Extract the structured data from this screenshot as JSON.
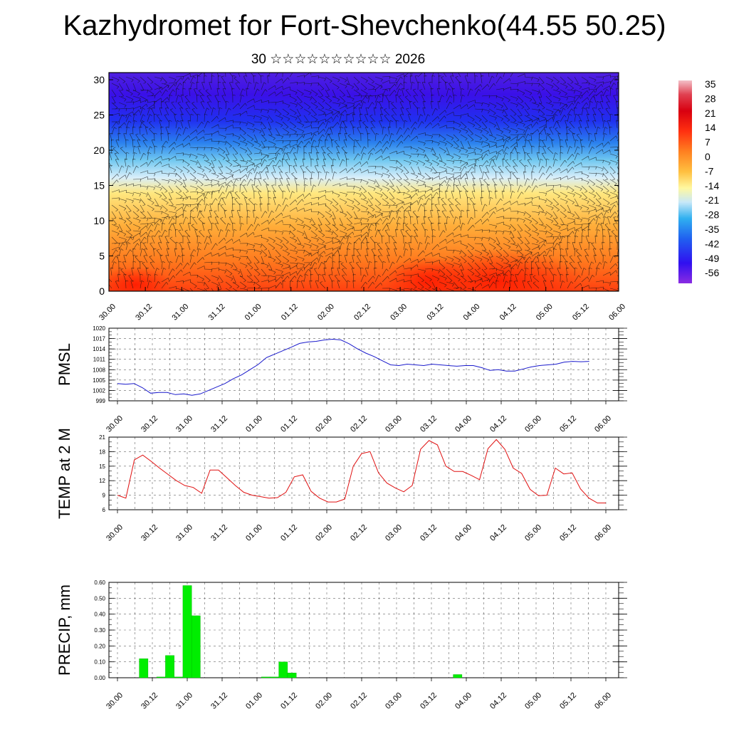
{
  "header": {
    "title": "Kazhydromet for Fort-Shevchenko(44.55 50.25)",
    "subtitle": "30 ☆☆☆☆☆☆☆☆☆☆ 2026"
  },
  "colors": {
    "pmsl_line": "#1a1acc",
    "temp_line": "#e01010",
    "precip_bar": "#00ee00"
  },
  "chart_data": [
    {
      "type": "heatmap",
      "title": "",
      "ylabel": "",
      "xlabel": "",
      "ylim": [
        0,
        30
      ],
      "yticks": [
        "0",
        "5",
        "10",
        "15",
        "20",
        "25",
        "30"
      ],
      "x_labels": [
        "30.00",
        "30.12",
        "31.00",
        "31.12",
        "01.00",
        "01.12",
        "02.00",
        "02.12",
        "03.00",
        "03.12",
        "04.00",
        "04.12",
        "05.00",
        "05.12",
        "06.00"
      ],
      "overlay": "wind barbs",
      "colorbar_labels": [
        "35",
        "28",
        "21",
        "14",
        "7",
        "0",
        "-7",
        "-14",
        "-21",
        "-28",
        "-35",
        "-42",
        "-49",
        "-56"
      ],
      "colorbar_range": [
        -63,
        42
      ]
    },
    {
      "type": "line",
      "ylabel": "PMSL",
      "ylim": [
        999,
        1020
      ],
      "yticks": [
        "1020",
        "1017",
        "1014",
        "1011",
        "1008",
        "1005",
        "1002",
        "999"
      ],
      "x_labels": [
        "30.00",
        "30.12",
        "31.00",
        "31.12",
        "01.00",
        "01.12",
        "02.00",
        "02.12",
        "03.00",
        "03.12",
        "04.00",
        "04.12",
        "05.00",
        "05.12",
        "06.00"
      ],
      "series": [
        {
          "name": "PMSL",
          "values": [
            1004,
            1003.8,
            1004,
            1002.8,
            1001.2,
            1001.4,
            1001.4,
            1000.8,
            1001,
            1000.6,
            1001,
            1002,
            1003,
            1004,
            1005.4,
            1006.5,
            1008,
            1009.5,
            1011.5,
            1012.5,
            1013.5,
            1014.5,
            1015.6,
            1016,
            1016.2,
            1016.6,
            1016.8,
            1016.6,
            1015.5,
            1014,
            1012.8,
            1011.8,
            1010.6,
            1009.4,
            1009.2,
            1009.6,
            1009.4,
            1009.2,
            1009.6,
            1009.4,
            1009.2,
            1009,
            1009.2,
            1009.2,
            1008.6,
            1007.8,
            1008,
            1007.6,
            1007.6,
            1008.2,
            1008.8,
            1009.2,
            1009.4,
            1009.6,
            1010.2,
            1010.4,
            1010.3,
            1010.4
          ]
        }
      ]
    },
    {
      "type": "line",
      "ylabel": "TEMP at 2 M",
      "ylim": [
        6,
        21
      ],
      "yticks": [
        "21",
        "18",
        "15",
        "12",
        "9",
        "6"
      ],
      "x_labels": [
        "30.00",
        "30.12",
        "31.00",
        "31.12",
        "01.00",
        "01.12",
        "02.00",
        "02.12",
        "03.00",
        "03.12",
        "04.00",
        "04.12",
        "05.00",
        "05.12",
        "06.00"
      ],
      "series": [
        {
          "name": "TEMP at 2 M",
          "values": [
            9,
            8.4,
            16.3,
            17.3,
            16,
            14.6,
            13.3,
            12,
            11,
            10.6,
            9.4,
            14.2,
            14.2,
            12.6,
            11,
            9.6,
            9,
            8.7,
            8.4,
            8.5,
            9.6,
            12.8,
            13.2,
            9.8,
            8.4,
            7.6,
            7.6,
            8.2,
            15,
            17.6,
            18,
            13.6,
            11.5,
            10.5,
            9.7,
            11,
            18.5,
            20.3,
            19.4,
            15,
            13.9,
            13.9,
            13.1,
            12.2,
            18.6,
            20.5,
            18.5,
            14.6,
            13.5,
            10.2,
            8.9,
            9,
            14.6,
            13.4,
            13.6,
            10.3,
            8.4,
            7.4,
            7.4
          ]
        }
      ]
    },
    {
      "type": "bar",
      "ylabel": "PRECIP, mm",
      "ylim": [
        0,
        0.6
      ],
      "yticks": [
        "0.60",
        "0.50",
        "0.40",
        "0.30",
        "0.20",
        "0.10",
        "0.00"
      ],
      "x_labels": [
        "30.00",
        "30.12",
        "31.00",
        "31.12",
        "01.00",
        "01.12",
        "02.00",
        "02.12",
        "03.00",
        "03.12",
        "04.00",
        "04.12",
        "05.00",
        "05.12",
        "06.00"
      ],
      "bar_times_hours": [
        9,
        15,
        18,
        21,
        24,
        27,
        51,
        54,
        57,
        60,
        117
      ],
      "values": [
        0.12,
        0.005,
        0.14,
        0.005,
        0.58,
        0.39,
        0.005,
        0.005,
        0.1,
        0.03,
        0.02
      ]
    }
  ]
}
